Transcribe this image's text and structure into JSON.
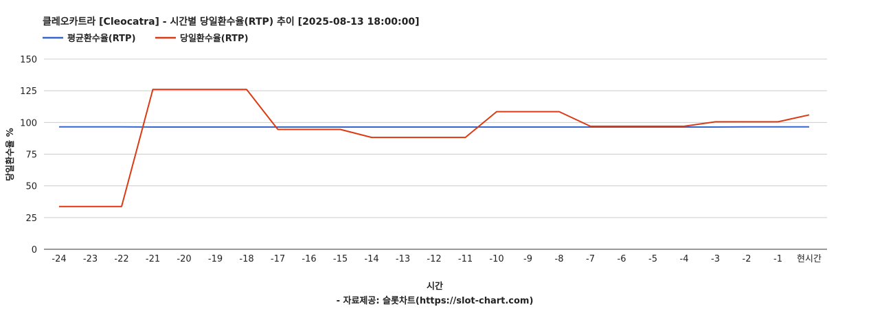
{
  "chart_data": {
    "type": "line",
    "title": "클레오카트라 [Cleocatra] - 시간별 당일환수율(RTP) 추이 [2025-08-13 18:00:00]",
    "xlabel": "시간",
    "ylabel": "당일환수율 %",
    "source": "- 자료제공: 슬롯차트(https://slot-chart.com)",
    "categories": [
      "-24",
      "-23",
      "-22",
      "-21",
      "-20",
      "-19",
      "-18",
      "-17",
      "-16",
      "-15",
      "-14",
      "-13",
      "-12",
      "-11",
      "-10",
      "-9",
      "-8",
      "-7",
      "-6",
      "-5",
      "-4",
      "-3",
      "-2",
      "-1",
      "현시간"
    ],
    "ylim": [
      0,
      150
    ],
    "yticks": [
      0,
      25,
      50,
      75,
      100,
      125,
      150
    ],
    "grid": true,
    "legend_position": "top-left",
    "series": [
      {
        "name": "평균환수율(RTP)",
        "color": "#3366cc",
        "values": [
          96.5,
          96.5,
          96.5,
          96.4,
          96.4,
          96.4,
          96.4,
          96.4,
          96.4,
          96.4,
          96.4,
          96.4,
          96.4,
          96.4,
          96.4,
          96.4,
          96.4,
          96.4,
          96.4,
          96.4,
          96.4,
          96.4,
          96.5,
          96.5,
          96.5
        ]
      },
      {
        "name": "당일환수율(RTP)",
        "color": "#dc3912",
        "values": [
          33.7,
          33.7,
          33.7,
          126,
          126,
          126,
          126,
          94.5,
          94.5,
          94.5,
          88.2,
          88.2,
          88.2,
          88.2,
          108.5,
          108.5,
          108.5,
          97,
          97,
          97,
          97,
          100.5,
          100.5,
          100.5,
          106
        ]
      }
    ]
  }
}
